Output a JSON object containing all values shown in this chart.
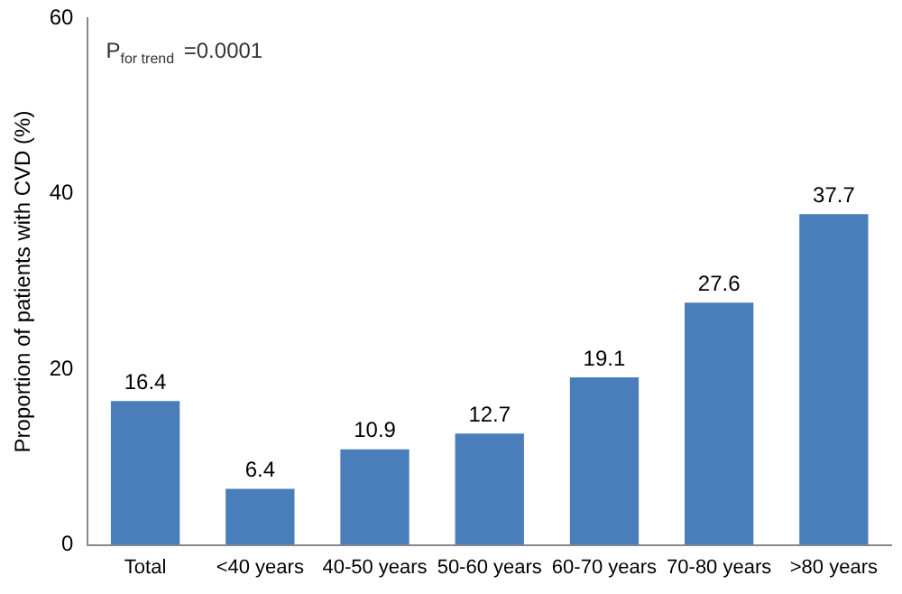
{
  "chart_data": {
    "type": "bar",
    "ylabel": "Proportion of patients with CVD (%)",
    "categories": [
      "Total",
      "<40 years",
      "40-50 years",
      "50-60 years",
      "60-70 years",
      "70-80 years",
      ">80 years"
    ],
    "values": [
      16.4,
      6.4,
      10.9,
      12.7,
      19.1,
      27.6,
      37.7
    ],
    "color": "#4a7ebb",
    "ylim": [
      0,
      60
    ],
    "yticks": [
      0,
      20,
      40,
      60
    ],
    "grid": false,
    "data_labels": true,
    "legend": false,
    "annotations": [
      "P$_{for trend}$ =0.0001"
    ]
  }
}
